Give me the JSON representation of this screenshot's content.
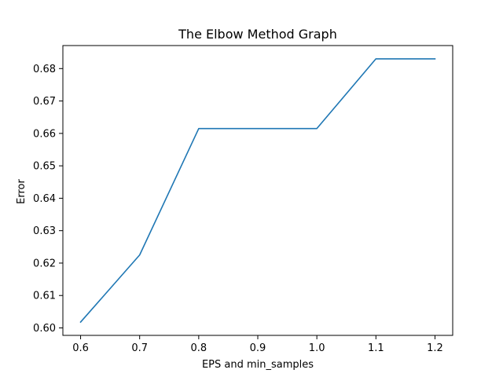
{
  "chart_data": {
    "type": "line",
    "title": "The Elbow Method Graph",
    "xlabel": "EPS and min_samples",
    "ylabel": "Error",
    "x": [
      0.6,
      0.7,
      0.8,
      0.9,
      1.0,
      1.1,
      1.2
    ],
    "x_tick_labels": [
      "0.6",
      "0.7",
      "0.8",
      "0.9",
      "1.0",
      "1.1",
      "1.2"
    ],
    "y_tick_values": [
      0.6,
      0.61,
      0.62,
      0.63,
      0.64,
      0.65,
      0.66,
      0.67,
      0.68
    ],
    "y_tick_labels": [
      "0.60",
      "0.61",
      "0.62",
      "0.63",
      "0.64",
      "0.65",
      "0.66",
      "0.67",
      "0.68"
    ],
    "series": [
      {
        "name": "error",
        "values": [
          0.6018,
          0.6225,
          0.6615,
          0.6615,
          0.6615,
          0.683,
          0.683
        ],
        "color": "#1f77b4"
      }
    ],
    "xlim": [
      0.57,
      1.23
    ],
    "ylim": [
      0.5977,
      0.6871
    ],
    "grid": false
  }
}
